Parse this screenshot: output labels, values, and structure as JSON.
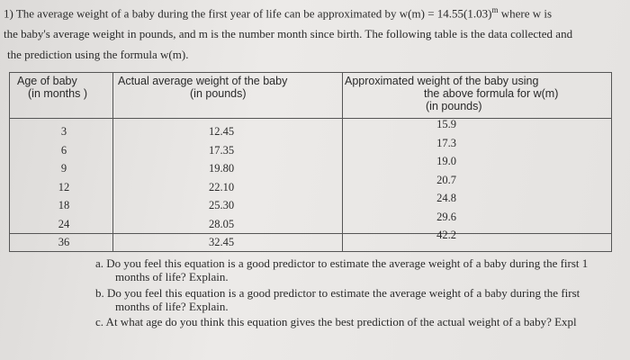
{
  "problem": {
    "intro": {
      "line1_before": "1) The average weight of a baby during the first year of life can be approximated by ",
      "formula": "w(m) = 14.55(1.03)",
      "exponent": "m",
      "line1_after": " where w is",
      "line2": "the baby's average weight in pounds, and m is the number month since birth. The following table is the data collected and",
      "line3": "the prediction using the formula w(m)."
    },
    "table": {
      "headers": [
        [
          "Age of baby",
          "(in months )"
        ],
        [
          "Actual average weight of the baby",
          "(in pounds)"
        ],
        [
          "Approximated weight of the baby using",
          "the above formula for w(m)",
          "(in pounds)"
        ]
      ],
      "rows": [
        [
          "3",
          "12.45",
          "15.9"
        ],
        [
          "6",
          "17.35",
          "17.3"
        ],
        [
          "9",
          "19.80",
          "19.0"
        ],
        [
          "12",
          "22.10",
          "20.7"
        ],
        [
          "18",
          "25.30",
          "24.8"
        ],
        [
          "24",
          "28.05",
          "29.6"
        ],
        [
          "36",
          "32.45",
          "42.2"
        ]
      ]
    },
    "questions": [
      [
        "a. Do you feel this equation is a good predictor to estimate the average weight of a baby during the first 1",
        "months of life? Explain."
      ],
      [
        "b. Do you feel this equation is a good predictor to estimate the average weight of a baby during the first",
        "months of life? Explain."
      ],
      [
        "c. At what age do you think this equation gives the best prediction of the actual weight of a baby? Expl"
      ]
    ]
  }
}
